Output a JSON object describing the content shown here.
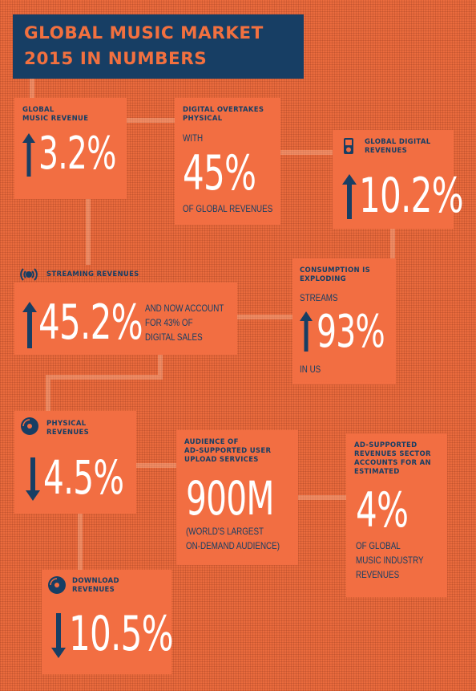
{
  "title": {
    "line1": "Global Music Market",
    "line2": "2015 in Numbers"
  },
  "stats": {
    "global_music_revenue": {
      "label_line1": "Global",
      "label_line2": "Music Revenue",
      "direction": "up",
      "value": "3.2%"
    },
    "digital_overtakes": {
      "label_line1": "Digital Overtakes",
      "label_line2": "Physical",
      "prefix": "With",
      "value": "45%",
      "suffix": "of Global Revenues"
    },
    "global_digital_revenues": {
      "label_line1": "Global Digital",
      "label_line2": "Revenues",
      "icon": "ipod-icon",
      "direction": "up",
      "value": "10.2%"
    },
    "streaming_revenues": {
      "label": "Streaming Revenues",
      "icon": "streaming-icon",
      "direction": "up",
      "value": "45.2%",
      "note_line1": "And now account",
      "note_line2": "for 43% of",
      "note_line3": "digital sales"
    },
    "consumption": {
      "label_line1": "Consumption is",
      "label_line2": "Exploding",
      "prefix": "Streams",
      "direction": "up",
      "value": "93%",
      "suffix": "in US"
    },
    "physical_revenues": {
      "label_line1": "Physical",
      "label_line2": "Revenues",
      "icon": "disc-icon",
      "direction": "down",
      "value": "4.5%"
    },
    "audience": {
      "label_line1": "Audience of",
      "label_line2": "Ad-supported user",
      "label_line3": "upload services",
      "value": "900M",
      "note_line1": "(World's largest",
      "note_line2": "on-demand audience)"
    },
    "ad_supported": {
      "label_line1": "Ad-supported",
      "label_line2": "revenues sector",
      "label_line3": "accounts for an",
      "label_line4": "estimated",
      "value": "4%",
      "note_line1": "of global",
      "note_line2": "music industry",
      "note_line3": "revenues"
    },
    "download_revenues": {
      "label_line1": "Download",
      "label_line2": "Revenues",
      "icon": "disc-icon",
      "direction": "down",
      "value": "10.5%"
    }
  },
  "colors": {
    "background": "#ea6b3d",
    "card": "#f26e42",
    "navy": "#173e64",
    "white": "#ffffff"
  }
}
